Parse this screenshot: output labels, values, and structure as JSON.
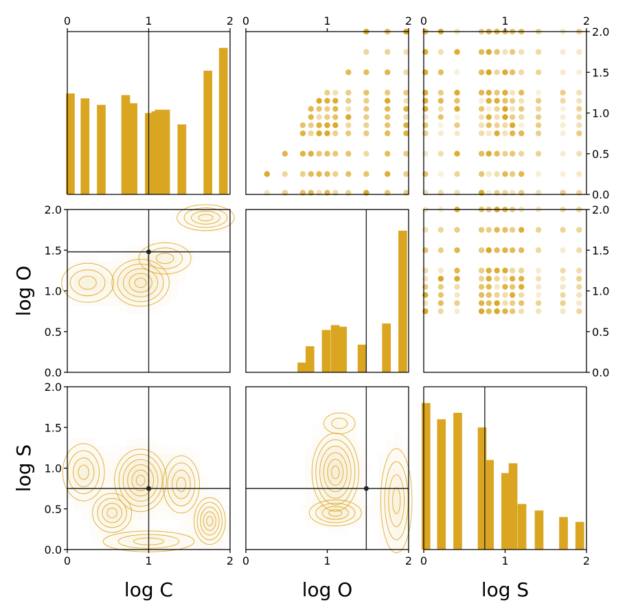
{
  "figure": {
    "type": "corner-plot",
    "accent_color": "#DAA520",
    "reference_color": "#222222",
    "variables": [
      "log C",
      "log O",
      "log S"
    ],
    "axis_range": [
      0,
      2
    ],
    "reference_point": {
      "log C": 1.0,
      "log O": 1.48,
      "log S": 0.75
    }
  },
  "chart_data": [
    {
      "type": "bar",
      "panel": "hist-logC",
      "xlabel": "",
      "xlim": [
        0,
        2
      ],
      "xticks": [
        "0",
        "1",
        "2"
      ],
      "bars": [
        {
          "x": 0.03,
          "value": 0.62
        },
        {
          "x": 0.21,
          "value": 0.59
        },
        {
          "x": 0.41,
          "value": 0.55
        },
        {
          "x": 0.71,
          "value": 0.61
        },
        {
          "x": 0.8,
          "value": 0.56
        },
        {
          "x": 1.0,
          "value": 0.5
        },
        {
          "x": 1.08,
          "value": 0.51
        },
        {
          "x": 1.12,
          "value": 0.52
        },
        {
          "x": 1.2,
          "value": 0.52
        },
        {
          "x": 1.4,
          "value": 0.43
        },
        {
          "x": 1.72,
          "value": 0.76
        },
        {
          "x": 1.91,
          "value": 0.9
        }
      ]
    },
    {
      "type": "bar",
      "panel": "hist-logO",
      "xlim": [
        0,
        2
      ],
      "bars": [
        {
          "x": 0.68,
          "value": 0.06
        },
        {
          "x": 0.78,
          "value": 0.16
        },
        {
          "x": 0.98,
          "value": 0.26
        },
        {
          "x": 1.09,
          "value": 0.29
        },
        {
          "x": 1.18,
          "value": 0.28
        },
        {
          "x": 1.42,
          "value": 0.17
        },
        {
          "x": 1.72,
          "value": 0.3
        },
        {
          "x": 1.92,
          "value": 0.87
        }
      ]
    },
    {
      "type": "bar",
      "panel": "hist-logS",
      "xlabel": "log S",
      "xlim": [
        0,
        2
      ],
      "xticks": [
        "0",
        "1",
        "2"
      ],
      "bars": [
        {
          "x": 0.02,
          "value": 0.9
        },
        {
          "x": 0.21,
          "value": 0.8
        },
        {
          "x": 0.41,
          "value": 0.84
        },
        {
          "x": 0.71,
          "value": 0.75
        },
        {
          "x": 0.8,
          "value": 0.55
        },
        {
          "x": 1.0,
          "value": 0.47
        },
        {
          "x": 1.09,
          "value": 0.53
        },
        {
          "x": 1.2,
          "value": 0.28
        },
        {
          "x": 1.41,
          "value": 0.24
        },
        {
          "x": 1.71,
          "value": 0.2
        },
        {
          "x": 1.91,
          "value": 0.17
        }
      ]
    },
    {
      "type": "scatter",
      "panel": "logO-vs-logC (upper)",
      "xlim": [
        0,
        2
      ],
      "ylim": [
        0,
        2
      ],
      "x_grid": [
        0.26,
        0.46,
        0.6,
        0.7,
        0.8,
        0.9,
        1.0,
        1.1,
        1.26,
        1.48,
        1.74,
        1.95
      ],
      "y_grid": [
        0.0,
        0.25,
        0.5,
        0.75,
        0.85,
        0.95,
        1.05,
        1.15,
        1.25,
        1.5,
        1.75,
        2.0
      ]
    },
    {
      "type": "scatter",
      "panel": "logS-vs-logC (upper)",
      "xlim": [
        0,
        2
      ],
      "ylim": [
        0,
        2
      ],
      "y_ticks_right": [
        "0.0",
        "0.5",
        "1.0",
        "1.5",
        "2.0"
      ]
    },
    {
      "type": "scatter",
      "panel": "logS-vs-logO (upper)",
      "xlim": [
        0,
        2
      ],
      "ylim": [
        0,
        2
      ],
      "y_ticks_right": [
        "0.0",
        "0.5",
        "1.0",
        "1.5",
        "2.0"
      ]
    },
    {
      "type": "heatmap",
      "panel": "logO-vs-logC (lower, contours)",
      "xlim": [
        0,
        2
      ],
      "ylim": [
        0,
        2
      ],
      "ylabel": "log O",
      "yticks": [
        "0.0",
        "0.5",
        "1.0",
        "1.5",
        "2.0"
      ]
    },
    {
      "type": "heatmap",
      "panel": "logS-vs-logC (lower, contours)",
      "xlim": [
        0,
        2
      ],
      "ylim": [
        0,
        2
      ],
      "xlabel": "log C",
      "ylabel": "log S",
      "xticks": [
        "0",
        "1",
        "2"
      ],
      "yticks": [
        "0.0",
        "0.5",
        "1.0",
        "1.5",
        "2.0"
      ]
    },
    {
      "type": "heatmap",
      "panel": "logS-vs-logO (lower, contours)",
      "xlim": [
        0,
        2
      ],
      "ylim": [
        0,
        2
      ],
      "xlabel": "log O",
      "xticks": [
        "0",
        "1",
        "2"
      ]
    }
  ],
  "labels": {
    "col_bottom": [
      "log C",
      "log O",
      "log S"
    ],
    "row_left": [
      "log O",
      "log S"
    ],
    "x_ticks": [
      "0",
      "1",
      "2"
    ],
    "y_ticks": [
      "0.0",
      "0.5",
      "1.0",
      "1.5",
      "2.0"
    ]
  }
}
